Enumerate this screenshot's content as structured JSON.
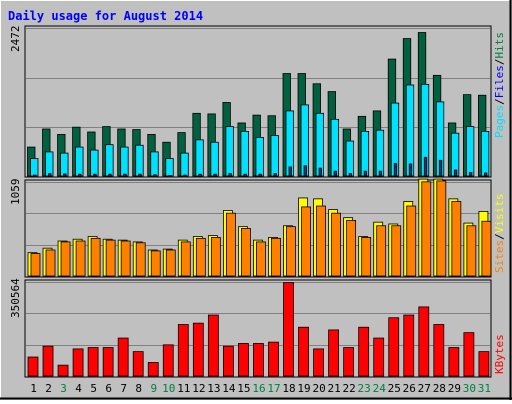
{
  "title": "Daily usage for August 2014",
  "colors": {
    "background": "#c0c0c0",
    "title": "#0000ff",
    "hits": "#006040",
    "files": "#00e0ff",
    "pages": "#004080",
    "visits": "#ffff00",
    "sites": "#ff8000",
    "kbytes": "#ff0000",
    "weekend_label": "#008040",
    "weekday_label": "#000000"
  },
  "chart_data": [
    {
      "type": "bar",
      "name": "hits-files-pages",
      "ymax_label": "2472",
      "ylim": [
        0,
        2472
      ],
      "legend": [
        "Pages",
        "Files",
        "Hits"
      ],
      "categories": [
        "1",
        "2",
        "3",
        "4",
        "5",
        "6",
        "7",
        "8",
        "9",
        "10",
        "11",
        "12",
        "13",
        "14",
        "15",
        "16",
        "17",
        "18",
        "19",
        "20",
        "21",
        "22",
        "23",
        "24",
        "25",
        "26",
        "27",
        "28",
        "29",
        "30",
        "31"
      ],
      "weekend_days": [
        "3",
        "9",
        "10",
        "16",
        "17",
        "23",
        "24",
        "30",
        "31"
      ],
      "series": [
        {
          "name": "Hits",
          "values": [
            480,
            780,
            690,
            810,
            730,
            820,
            780,
            770,
            690,
            560,
            720,
            1040,
            1030,
            1220,
            880,
            1010,
            1000,
            1700,
            1700,
            1530,
            1400,
            780,
            990,
            1080,
            1940,
            2280,
            2380,
            1670,
            880,
            1350,
            1340
          ]
        },
        {
          "name": "Files",
          "values": [
            290,
            400,
            380,
            480,
            430,
            520,
            480,
            510,
            400,
            290,
            380,
            600,
            560,
            820,
            740,
            640,
            670,
            1080,
            1180,
            1040,
            940,
            580,
            740,
            760,
            1210,
            1510,
            1520,
            1230,
            710,
            820,
            740
          ]
        },
        {
          "name": "Pages",
          "values": [
            15,
            40,
            35,
            30,
            30,
            30,
            30,
            30,
            20,
            10,
            15,
            30,
            30,
            40,
            30,
            30,
            40,
            150,
            170,
            130,
            80,
            40,
            80,
            80,
            210,
            200,
            310,
            260,
            100,
            60,
            50
          ]
        }
      ]
    },
    {
      "type": "bar",
      "name": "visits-sites",
      "ymax_label": "1059",
      "ylim": [
        0,
        1059
      ],
      "legend": [
        "Sites",
        "Visits"
      ],
      "categories": [
        "1",
        "2",
        "3",
        "4",
        "5",
        "6",
        "7",
        "8",
        "9",
        "10",
        "11",
        "12",
        "13",
        "14",
        "15",
        "16",
        "17",
        "18",
        "19",
        "20",
        "21",
        "22",
        "23",
        "24",
        "25",
        "26",
        "27",
        "28",
        "29",
        "30",
        "31"
      ],
      "series": [
        {
          "name": "Visits",
          "values": [
            260,
            310,
            390,
            410,
            440,
            410,
            400,
            380,
            290,
            300,
            400,
            440,
            450,
            730,
            550,
            400,
            430,
            560,
            870,
            860,
            740,
            650,
            440,
            600,
            580,
            830,
            1080,
            1080,
            860,
            590,
            720
          ]
        },
        {
          "name": "Sites",
          "values": [
            250,
            290,
            380,
            390,
            420,
            400,
            390,
            370,
            280,
            290,
            380,
            420,
            430,
            700,
            530,
            380,
            420,
            550,
            770,
            780,
            700,
            620,
            430,
            560,
            560,
            780,
            1050,
            1060,
            830,
            560,
            610
          ]
        }
      ]
    },
    {
      "type": "bar",
      "name": "kbytes",
      "ymax_label": "350564",
      "ylim": [
        0,
        350564
      ],
      "legend": [
        "KBytes"
      ],
      "categories": [
        "1",
        "2",
        "3",
        "4",
        "5",
        "6",
        "7",
        "8",
        "9",
        "10",
        "11",
        "12",
        "13",
        "14",
        "15",
        "16",
        "17",
        "18",
        "19",
        "20",
        "21",
        "22",
        "23",
        "24",
        "25",
        "26",
        "27",
        "28",
        "29",
        "30",
        "31"
      ],
      "series": [
        {
          "name": "KBytes",
          "values": [
            70000,
            110000,
            40000,
            100000,
            105000,
            105000,
            140000,
            90000,
            50000,
            115000,
            190000,
            195000,
            225000,
            110000,
            120000,
            120000,
            125000,
            345000,
            180000,
            100000,
            170000,
            105000,
            180000,
            140000,
            215000,
            225000,
            255000,
            190000,
            105000,
            160000,
            90000
          ]
        }
      ]
    }
  ]
}
